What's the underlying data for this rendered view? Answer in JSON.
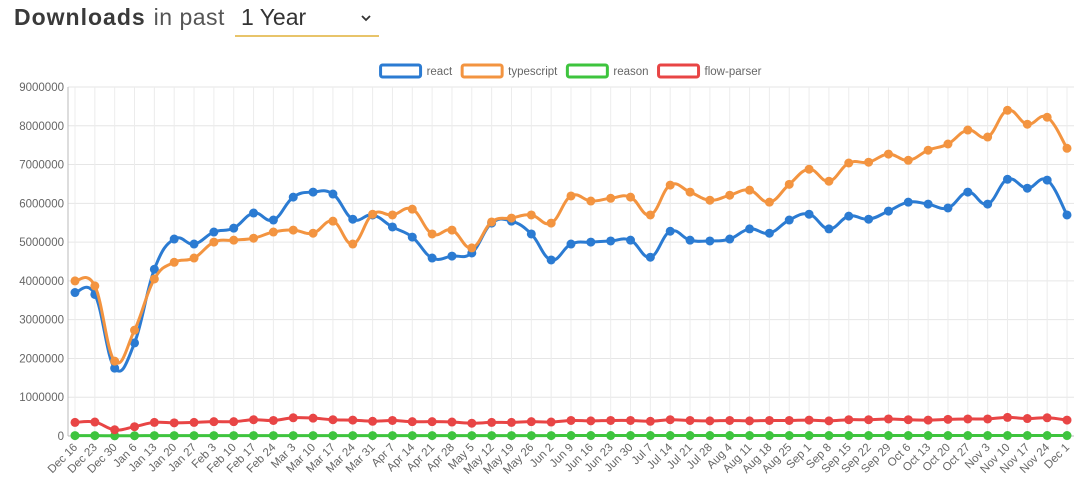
{
  "header": {
    "title": "Downloads",
    "subtitle": "in past",
    "period": "1 Year"
  },
  "chart_data": {
    "type": "line",
    "categories": [
      "Dec 16",
      "Dec 23",
      "Dec 30",
      "Jan 6",
      "Jan 13",
      "Jan 20",
      "Jan 27",
      "Feb 3",
      "Feb 10",
      "Feb 17",
      "Feb 24",
      "Mar 3",
      "Mar 10",
      "Mar 17",
      "Mar 24",
      "Mar 31",
      "Apr 7",
      "Apr 14",
      "Apr 21",
      "Apr 28",
      "May 5",
      "May 12",
      "May 19",
      "May 26",
      "Jun 2",
      "Jun 9",
      "Jun 16",
      "Jun 23",
      "Jun 30",
      "Jul 7",
      "Jul 14",
      "Jul 21",
      "Jul 28",
      "Aug 4",
      "Aug 11",
      "Aug 18",
      "Aug 25",
      "Sep 1",
      "Sep 8",
      "Sep 15",
      "Sep 22",
      "Sep 29",
      "Oct 6",
      "Oct 13",
      "Oct 20",
      "Oct 27",
      "Nov 3",
      "Nov 10",
      "Nov 17",
      "Nov 24",
      "Dec 1"
    ],
    "series": [
      {
        "name": "react",
        "color": "#2b7bd2",
        "values": [
          3700000,
          3650000,
          1750000,
          2400000,
          4300000,
          5080000,
          4950000,
          5260000,
          5360000,
          5750000,
          5570000,
          6160000,
          6290000,
          6240000,
          5590000,
          5700000,
          5390000,
          5130000,
          4590000,
          4640000,
          4720000,
          5490000,
          5540000,
          5210000,
          4540000,
          4950000,
          5000000,
          5030000,
          5050000,
          4610000,
          5280000,
          5050000,
          5030000,
          5080000,
          5340000,
          5230000,
          5570000,
          5720000,
          5340000,
          5670000,
          5590000,
          5800000,
          6030000,
          5980000,
          5880000,
          6290000,
          5980000,
          6620000,
          6390000,
          6600000,
          5700000
        ]
      },
      {
        "name": "typescript",
        "color": "#f39440",
        "values": [
          4000000,
          3870000,
          1930000,
          2730000,
          4050000,
          4480000,
          4590000,
          5000000,
          5050000,
          5100000,
          5260000,
          5310000,
          5230000,
          5540000,
          4950000,
          5720000,
          5700000,
          5850000,
          5210000,
          5310000,
          4850000,
          5520000,
          5620000,
          5700000,
          5490000,
          6190000,
          6060000,
          6130000,
          6160000,
          5700000,
          6470000,
          6290000,
          6080000,
          6210000,
          6340000,
          6030000,
          6490000,
          6880000,
          6570000,
          7040000,
          7060000,
          7270000,
          7110000,
          7370000,
          7530000,
          7890000,
          7710000,
          8400000,
          8040000,
          8220000,
          7420000
        ]
      },
      {
        "name": "reason",
        "color": "#3ec43e",
        "values": [
          10000,
          10000,
          5000,
          8000,
          10000,
          10000,
          10000,
          10000,
          10000,
          11000,
          11000,
          11000,
          11000,
          11000,
          11000,
          11000,
          11000,
          11000,
          11000,
          11000,
          11000,
          11000,
          11000,
          11000,
          11000,
          12000,
          12000,
          12000,
          12000,
          12000,
          12000,
          12000,
          12000,
          12000,
          12000,
          12000,
          12000,
          12000,
          12000,
          12000,
          12000,
          12000,
          12000,
          12000,
          12000,
          12000,
          12000,
          13000,
          13000,
          13000,
          12000
        ]
      },
      {
        "name": "flow-parser",
        "color": "#e84545",
        "values": [
          350000,
          360000,
          160000,
          240000,
          350000,
          340000,
          350000,
          370000,
          370000,
          420000,
          400000,
          470000,
          460000,
          420000,
          410000,
          380000,
          400000,
          370000,
          370000,
          360000,
          330000,
          350000,
          350000,
          370000,
          360000,
          400000,
          390000,
          400000,
          400000,
          380000,
          420000,
          400000,
          390000,
          400000,
          390000,
          400000,
          400000,
          410000,
          390000,
          420000,
          420000,
          440000,
          420000,
          410000,
          430000,
          440000,
          440000,
          480000,
          450000,
          470000,
          410000
        ]
      }
    ],
    "ylim": [
      0,
      9000000
    ],
    "yticks": [
      0,
      1000000,
      2000000,
      3000000,
      4000000,
      5000000,
      6000000,
      7000000,
      8000000,
      9000000
    ],
    "grid": true,
    "legend": "top"
  }
}
